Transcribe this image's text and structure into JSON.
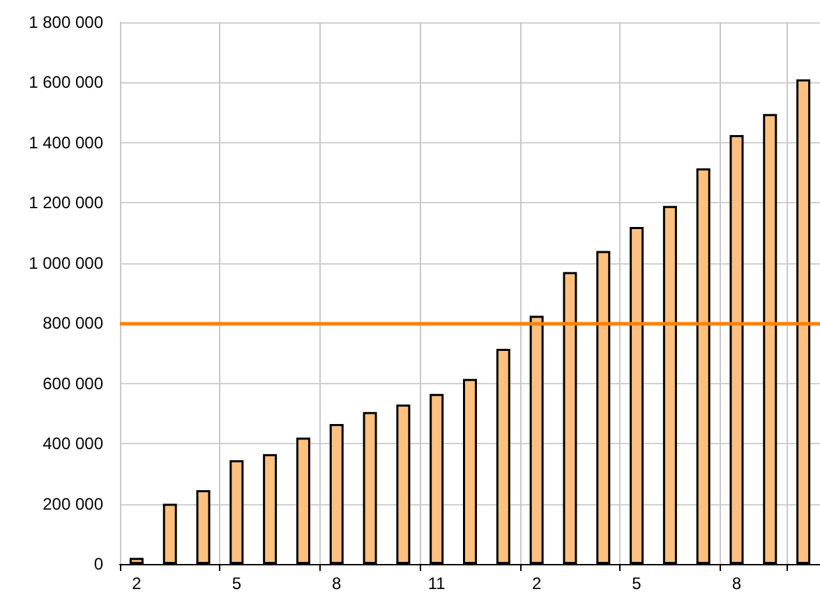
{
  "chart_data": {
    "type": "bar",
    "categories": [
      "2",
      null,
      null,
      "5",
      null,
      null,
      "8",
      null,
      null,
      "11",
      null,
      null,
      "2",
      null,
      null,
      "5",
      null,
      null,
      "8",
      null,
      null
    ],
    "values": [
      20000,
      200000,
      245000,
      345000,
      365000,
      420000,
      465000,
      505000,
      530000,
      565000,
      615000,
      715000,
      825000,
      970000,
      1040000,
      1120000,
      1190000,
      1315000,
      1425000,
      1495000,
      1610000
    ],
    "color": "#ffc080",
    "ylim": [
      0,
      1800000
    ],
    "yticks": [
      {
        "value": 0,
        "label": "0"
      },
      {
        "value": 200000,
        "label": "200 000"
      },
      {
        "value": 400000,
        "label": "400 000"
      },
      {
        "value": 600000,
        "label": "600 000"
      },
      {
        "value": 800000,
        "label": "800 000"
      },
      {
        "value": 1000000,
        "label": "1 000 000"
      },
      {
        "value": 1200000,
        "label": "1 200 000"
      },
      {
        "value": 1400000,
        "label": "1 400 000"
      },
      {
        "value": 1600000,
        "label": "1 600 000"
      },
      {
        "value": 1800000,
        "label": "1 800 000"
      }
    ],
    "grid": true,
    "ref_lines": [
      {
        "axis": "y",
        "value": 800000,
        "color": "#ff8000"
      }
    ]
  }
}
